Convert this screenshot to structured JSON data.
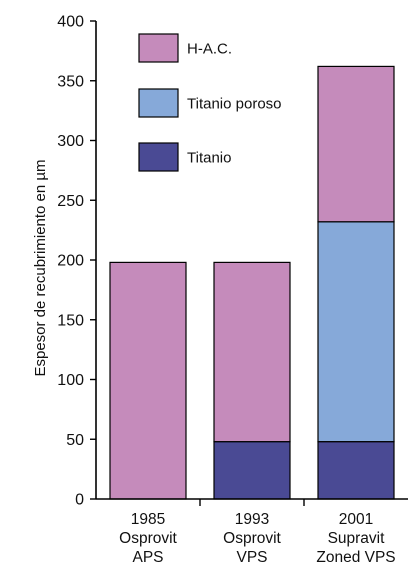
{
  "chart_data": {
    "type": "bar",
    "stacked": true,
    "categories": [
      [
        "1985",
        "Osprovit",
        "APS"
      ],
      [
        "1993",
        "Osprovit",
        "VPS"
      ],
      [
        "2001",
        "Supravit",
        "Zoned VPS"
      ]
    ],
    "series": [
      {
        "name": "Titanio",
        "color": "#4a4a94",
        "values": [
          0,
          48,
          48
        ]
      },
      {
        "name": "Titanio poroso",
        "color": "#86a9d9",
        "values": [
          0,
          0,
          184
        ]
      },
      {
        "name": "H-A.C.",
        "color": "#c58bbb",
        "values": [
          198,
          150,
          130
        ]
      }
    ],
    "legend_order": [
      "H-A.C.",
      "Titanio poroso",
      "Titanio"
    ],
    "ylabel": "Espesor de recubrimiento en µm",
    "xlabel": "",
    "ylim": [
      0,
      400
    ],
    "yticks": [
      "0",
      "50",
      "100",
      "150",
      "200",
      "250",
      "300",
      "350",
      "400"
    ],
    "legend_position": "top-left",
    "grid": false
  }
}
